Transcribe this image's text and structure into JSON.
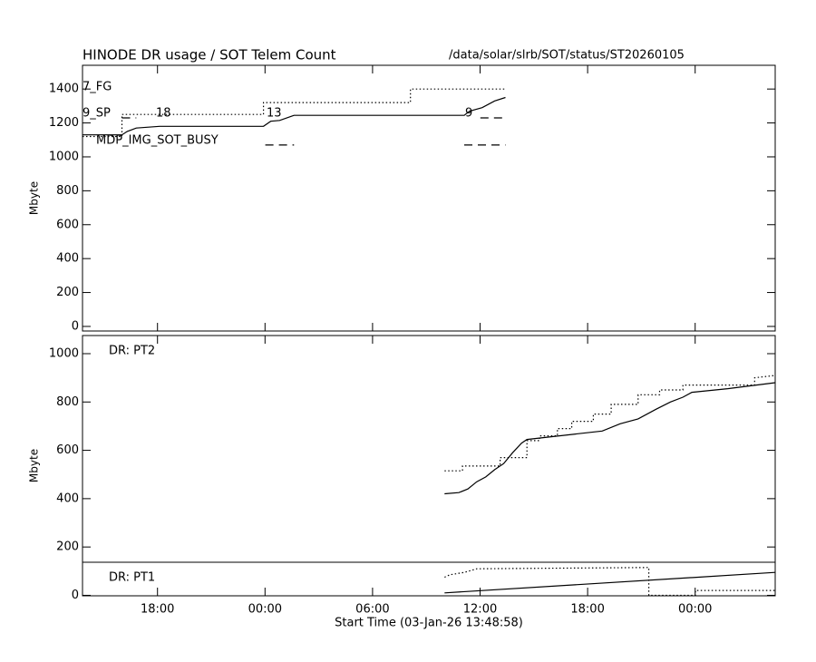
{
  "chart_data": [
    {
      "type": "line",
      "title": "HINODE DR usage / SOT Telem Count",
      "subtitle": "/data/solar/slrb/SOT/status/ST20260105",
      "ylabel": "Mbyte",
      "xlim": [
        0,
        38.65
      ],
      "ylim": [
        -27,
        1540
      ],
      "yticks": [
        0,
        200,
        400,
        600,
        800,
        1000,
        1200,
        1400
      ],
      "annotations": [
        "7_FG",
        "9_SP",
        "MDP_IMG_SOT_BUSY",
        "18",
        "13",
        "9"
      ],
      "series": [
        {
          "color": "#000000",
          "dash": "solid",
          "x": [
            0,
            2.2,
            2.5,
            3.0,
            4.3,
            10.1,
            10.5,
            11.0,
            11.8,
            21.3,
            21.6,
            22.3,
            23.0,
            23.6
          ],
          "values": [
            1130,
            1130,
            1150,
            1170,
            1180,
            1180,
            1210,
            1215,
            1245,
            1245,
            1270,
            1290,
            1330,
            1350
          ]
        },
        {
          "color": "#000000",
          "dash": "dotted",
          "x": [
            0,
            2.2,
            2.2,
            10.1,
            10.1,
            18.3,
            18.3,
            23.6
          ],
          "values": [
            1120,
            1120,
            1250,
            1250,
            1320,
            1320,
            1400,
            1400
          ]
        },
        {
          "color": "#000000",
          "dash": "dashed",
          "x": [
            2.2,
            3.0,
            3.0,
            22.2,
            23.6
          ],
          "values": [
            1230,
            1230,
            null,
            1230,
            1230
          ]
        },
        {
          "color": "#000000",
          "dash": "dashed",
          "x": [
            10.2,
            11.8,
            11.8,
            21.3,
            23.6
          ],
          "values": [
            1070,
            1070,
            null,
            1070,
            1070
          ]
        }
      ]
    },
    {
      "type": "line",
      "ylabel": "Mbyte",
      "xlabel": "Start Time (03-Jan-26 13:48:58)",
      "xlim": [
        0,
        38.65
      ],
      "ylim": [
        -2,
        1075
      ],
      "yticks": [
        0,
        200,
        400,
        600,
        800,
        1000
      ],
      "xticks": [
        {
          "value": 4.184,
          "label": "18:00"
        },
        {
          "value": 10.184,
          "label": "00:00"
        },
        {
          "value": 16.184,
          "label": "06:00"
        },
        {
          "value": 22.184,
          "label": "12:00"
        },
        {
          "value": 28.184,
          "label": "18:00"
        },
        {
          "value": 34.184,
          "label": "00:00"
        }
      ],
      "annotations": [
        "DR: PT2",
        "DR: PT1"
      ],
      "series": [
        {
          "color": "#000000",
          "dash": "solid",
          "x": [
            20.2,
            21.0,
            21.5,
            22.0,
            22.5,
            23.0,
            23.5,
            24.0,
            24.5,
            24.8,
            29.0,
            30.0,
            31.0,
            32.0,
            32.8,
            33.5,
            34.0,
            36.0,
            38.65
          ],
          "values": [
            420,
            425,
            440,
            470,
            490,
            520,
            545,
            590,
            630,
            645,
            680,
            710,
            730,
            770,
            800,
            820,
            840,
            855,
            880
          ]
        },
        {
          "color": "#000000",
          "dash": "dotted",
          "x": [
            20.2,
            21.2,
            21.2,
            23.3,
            23.3,
            24.8,
            24.8,
            25.5,
            25.5,
            26.5,
            26.5,
            27.3,
            27.3,
            28.5,
            28.5,
            29.5,
            29.5,
            31.0,
            31.0,
            32.2,
            32.2,
            33.5,
            33.5,
            37.5,
            37.5,
            38.65
          ],
          "values": [
            515,
            515,
            535,
            535,
            570,
            570,
            640,
            640,
            660,
            660,
            690,
            690,
            720,
            720,
            750,
            750,
            790,
            790,
            830,
            830,
            850,
            850,
            870,
            870,
            900,
            910
          ]
        },
        {
          "color": "#000000",
          "dash": "solid",
          "x": [
            20.2,
            38.65
          ],
          "values": [
            10,
            95
          ]
        },
        {
          "color": "#000000",
          "dash": "dotted",
          "x": [
            20.2,
            20.5,
            21.3,
            22.0,
            31.6,
            31.6,
            34.2,
            34.2,
            38.65
          ],
          "values": [
            75,
            85,
            95,
            110,
            115,
            0,
            0,
            20,
            20
          ]
        }
      ]
    }
  ]
}
